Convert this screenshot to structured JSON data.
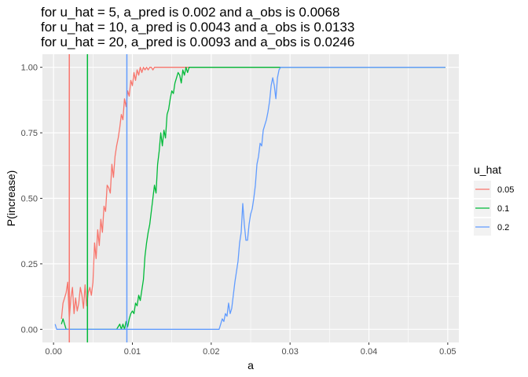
{
  "chart_data": {
    "type": "line",
    "title_lines": [
      "for u_hat = 5,   a_pred is 0.002 and a_obs is 0.0068",
      "for u_hat = 10, a_pred is 0.0043 and a_obs is 0.0133",
      "for u_hat = 20, a_pred is 0.0093 and a_obs is 0.0246"
    ],
    "xlabel": "a",
    "ylabel": "P(increase)",
    "xlim": [
      0,
      0.05
    ],
    "ylim": [
      0,
      1
    ],
    "x_ticks": [
      0,
      0.01,
      0.02,
      0.03,
      0.04,
      0.05
    ],
    "x_tick_labels": [
      "0.00",
      "0.01",
      "0.02",
      "0.03",
      "0.04",
      "0.05"
    ],
    "y_ticks": [
      0,
      0.25,
      0.5,
      0.75,
      1
    ],
    "y_tick_labels": [
      "0.00",
      "0.25",
      "0.50",
      "0.75",
      "1.00"
    ],
    "grid": true,
    "legend": {
      "title": "u_hat",
      "position": "right"
    },
    "series": [
      {
        "name": "0.05",
        "color": "#F8766D",
        "vline": 0.002,
        "points": [
          [
            0.001,
            0.04
          ],
          [
            0.0012,
            0.1
          ],
          [
            0.0014,
            0.12
          ],
          [
            0.0016,
            0.14
          ],
          [
            0.0018,
            0.18
          ],
          [
            0.002,
            0.04
          ],
          [
            0.0022,
            0.12
          ],
          [
            0.0024,
            0.16
          ],
          [
            0.0026,
            0.06
          ],
          [
            0.0028,
            0.12
          ],
          [
            0.003,
            0.07
          ],
          [
            0.0032,
            0.1
          ],
          [
            0.0034,
            0.16
          ],
          [
            0.0036,
            0.13
          ],
          [
            0.0038,
            0.08
          ],
          [
            0.004,
            0.17
          ],
          [
            0.0042,
            0.09
          ],
          [
            0.0044,
            0.14
          ],
          [
            0.0046,
            0.16
          ],
          [
            0.0048,
            0.13
          ],
          [
            0.005,
            0.18
          ],
          [
            0.0052,
            0.33
          ],
          [
            0.0054,
            0.27
          ],
          [
            0.0056,
            0.38
          ],
          [
            0.0058,
            0.32
          ],
          [
            0.006,
            0.42
          ],
          [
            0.0062,
            0.37
          ],
          [
            0.0064,
            0.47
          ],
          [
            0.0066,
            0.45
          ],
          [
            0.0068,
            0.55
          ],
          [
            0.007,
            0.54
          ],
          [
            0.0072,
            0.52
          ],
          [
            0.0074,
            0.63
          ],
          [
            0.0076,
            0.58
          ],
          [
            0.0078,
            0.66
          ],
          [
            0.008,
            0.7
          ],
          [
            0.0082,
            0.73
          ],
          [
            0.0084,
            0.77
          ],
          [
            0.0086,
            0.82
          ],
          [
            0.0088,
            0.8
          ],
          [
            0.009,
            0.88
          ],
          [
            0.0092,
            0.85
          ],
          [
            0.0094,
            0.91
          ],
          [
            0.0096,
            0.89
          ],
          [
            0.0098,
            0.95
          ],
          [
            0.01,
            0.93
          ],
          [
            0.0102,
            0.98
          ],
          [
            0.0104,
            0.95
          ],
          [
            0.0106,
            0.99
          ],
          [
            0.0108,
            0.97
          ],
          [
            0.011,
            1.0
          ],
          [
            0.0112,
            0.98
          ],
          [
            0.0114,
            1.0
          ],
          [
            0.0116,
            0.99
          ],
          [
            0.0118,
            1.0
          ],
          [
            0.012,
            0.99
          ],
          [
            0.0122,
            1.0
          ],
          [
            0.0124,
            1.0
          ],
          [
            0.0126,
            0.99
          ],
          [
            0.0128,
            1.0
          ],
          [
            0.014,
            1.0
          ],
          [
            0.02,
            1.0
          ],
          [
            0.03,
            1.0
          ],
          [
            0.04,
            1.0
          ],
          [
            0.0497,
            1.0
          ]
        ]
      },
      {
        "name": "0.1",
        "color": "#00BA38",
        "vline": 0.0043,
        "points": [
          [
            0.001,
            0.02
          ],
          [
            0.0012,
            0.04
          ],
          [
            0.0014,
            0.02
          ],
          [
            0.0016,
            0.0
          ],
          [
            0.0018,
            0.0
          ],
          [
            0.003,
            0.0
          ],
          [
            0.005,
            0.0
          ],
          [
            0.007,
            0.0
          ],
          [
            0.008,
            0.0
          ],
          [
            0.0082,
            0.01
          ],
          [
            0.0084,
            0.02
          ],
          [
            0.0086,
            0.0
          ],
          [
            0.0088,
            0.02
          ],
          [
            0.009,
            0.0
          ],
          [
            0.0092,
            0.03
          ],
          [
            0.0094,
            0.01
          ],
          [
            0.0096,
            0.04
          ],
          [
            0.0098,
            0.06
          ],
          [
            0.01,
            0.07
          ],
          [
            0.0102,
            0.06
          ],
          [
            0.0104,
            0.1
          ],
          [
            0.0106,
            0.09
          ],
          [
            0.0108,
            0.13
          ],
          [
            0.011,
            0.11
          ],
          [
            0.0112,
            0.15
          ],
          [
            0.0114,
            0.19
          ],
          [
            0.0116,
            0.28
          ],
          [
            0.0118,
            0.33
          ],
          [
            0.012,
            0.37
          ],
          [
            0.0122,
            0.4
          ],
          [
            0.0124,
            0.45
          ],
          [
            0.0126,
            0.5
          ],
          [
            0.0128,
            0.55
          ],
          [
            0.013,
            0.52
          ],
          [
            0.0132,
            0.63
          ],
          [
            0.0134,
            0.68
          ],
          [
            0.0136,
            0.75
          ],
          [
            0.0138,
            0.7
          ],
          [
            0.014,
            0.76
          ],
          [
            0.0142,
            0.73
          ],
          [
            0.0144,
            0.82
          ],
          [
            0.0146,
            0.84
          ],
          [
            0.0148,
            0.88
          ],
          [
            0.015,
            0.91
          ],
          [
            0.0152,
            0.9
          ],
          [
            0.0154,
            0.94
          ],
          [
            0.0156,
            0.96
          ],
          [
            0.0158,
            0.98
          ],
          [
            0.016,
            0.97
          ],
          [
            0.0162,
            0.94
          ],
          [
            0.0164,
            0.99
          ],
          [
            0.0166,
            0.97
          ],
          [
            0.0168,
            1.0
          ],
          [
            0.017,
            0.98
          ],
          [
            0.0172,
            1.0
          ],
          [
            0.018,
            1.0
          ],
          [
            0.02,
            1.0
          ],
          [
            0.03,
            1.0
          ],
          [
            0.04,
            1.0
          ],
          [
            0.0497,
            1.0
          ]
        ]
      },
      {
        "name": "0.2",
        "color": "#619CFF",
        "vline": 0.0093,
        "points": [
          [
            0.0002,
            0.02
          ],
          [
            0.0004,
            0.0
          ],
          [
            0.005,
            0.0
          ],
          [
            0.01,
            0.0
          ],
          [
            0.015,
            0.0
          ],
          [
            0.02,
            0.0
          ],
          [
            0.021,
            0.0
          ],
          [
            0.0212,
            0.02
          ],
          [
            0.0214,
            0.04
          ],
          [
            0.0216,
            0.03
          ],
          [
            0.0218,
            0.06
          ],
          [
            0.022,
            0.05
          ],
          [
            0.0222,
            0.1
          ],
          [
            0.0224,
            0.06
          ],
          [
            0.0226,
            0.08
          ],
          [
            0.0228,
            0.13
          ],
          [
            0.023,
            0.18
          ],
          [
            0.0232,
            0.22
          ],
          [
            0.0234,
            0.26
          ],
          [
            0.0236,
            0.33
          ],
          [
            0.0238,
            0.37
          ],
          [
            0.024,
            0.48
          ],
          [
            0.0242,
            0.4
          ],
          [
            0.0244,
            0.34
          ],
          [
            0.0246,
            0.34
          ],
          [
            0.0248,
            0.4
          ],
          [
            0.025,
            0.44
          ],
          [
            0.0252,
            0.46
          ],
          [
            0.0254,
            0.5
          ],
          [
            0.0256,
            0.55
          ],
          [
            0.0258,
            0.63
          ],
          [
            0.026,
            0.66
          ],
          [
            0.0262,
            0.71
          ],
          [
            0.0264,
            0.7
          ],
          [
            0.0266,
            0.76
          ],
          [
            0.0268,
            0.78
          ],
          [
            0.027,
            0.8
          ],
          [
            0.0272,
            0.83
          ],
          [
            0.0274,
            0.87
          ],
          [
            0.0276,
            0.93
          ],
          [
            0.0278,
            0.96
          ],
          [
            0.028,
            0.93
          ],
          [
            0.0282,
            0.88
          ],
          [
            0.0284,
            0.96
          ],
          [
            0.0286,
            0.99
          ],
          [
            0.0288,
            1.0
          ],
          [
            0.03,
            1.0
          ],
          [
            0.035,
            1.0
          ],
          [
            0.04,
            1.0
          ],
          [
            0.0497,
            1.0
          ]
        ]
      }
    ]
  }
}
